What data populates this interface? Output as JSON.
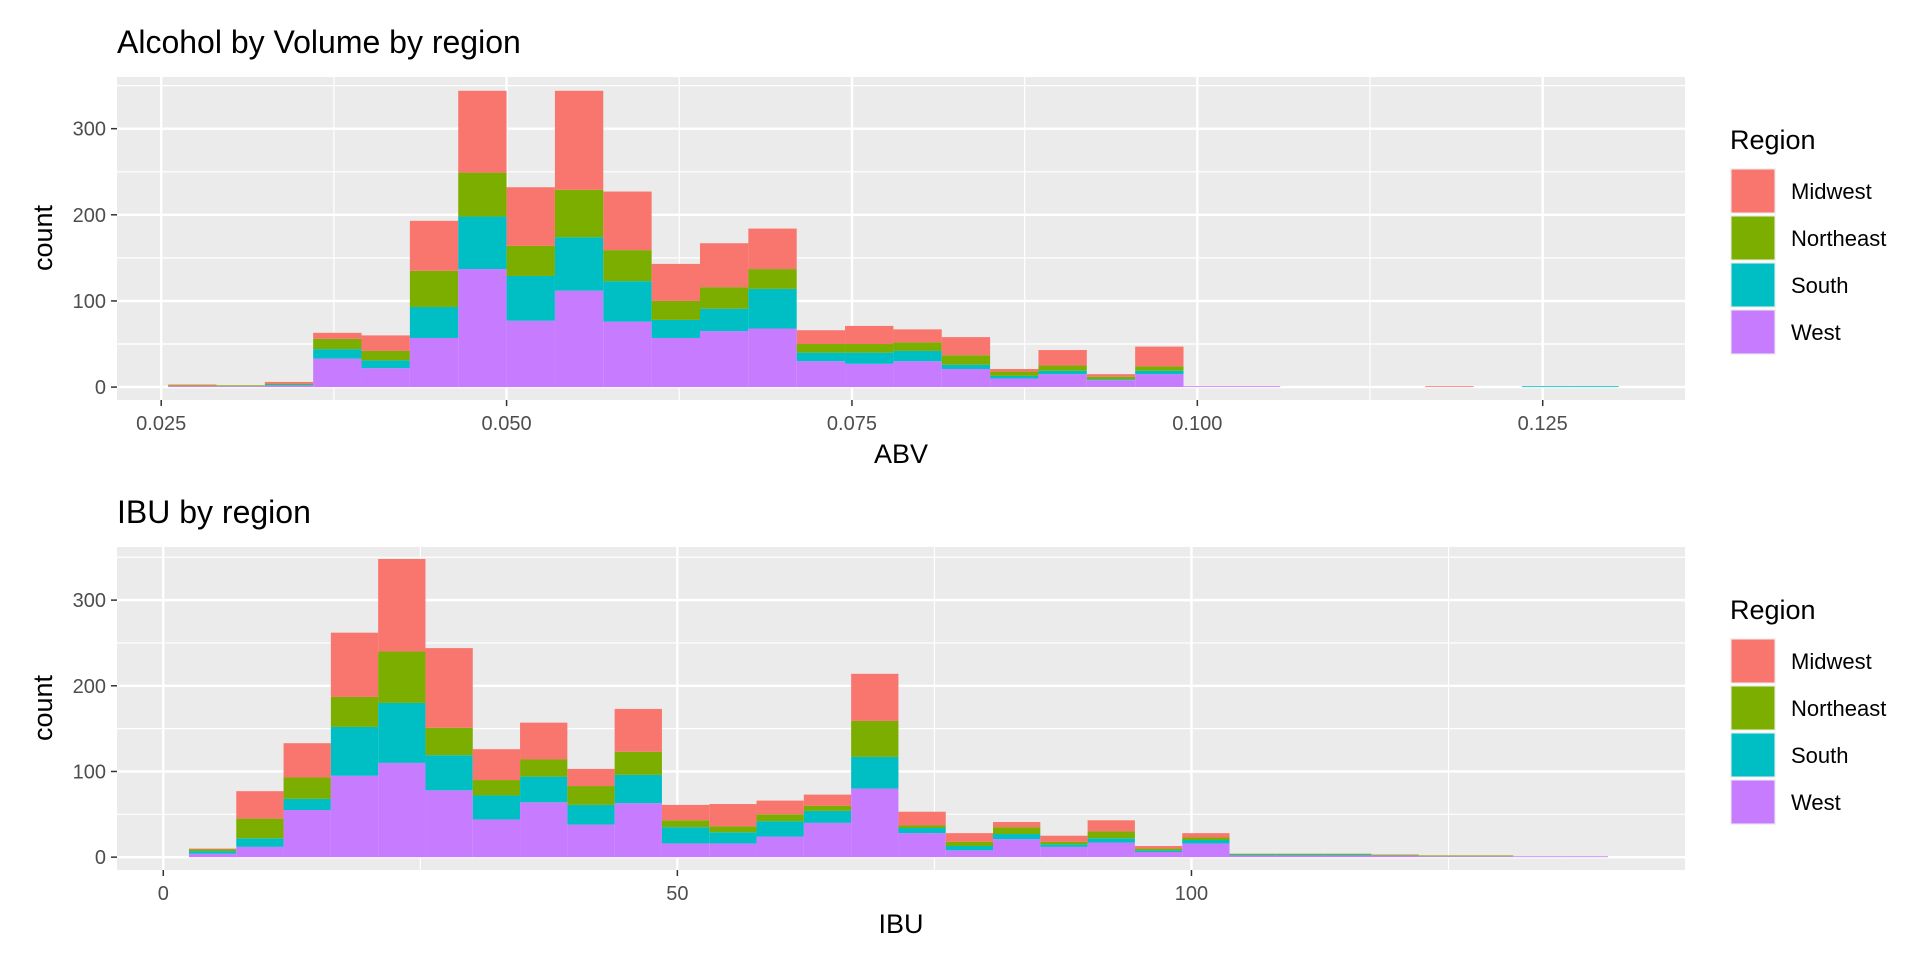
{
  "legend_title": "Region",
  "regions": [
    {
      "name": "Midwest",
      "color": "#F8766D"
    },
    {
      "name": "Northeast",
      "color": "#7CAE00"
    },
    {
      "name": "South",
      "color": "#00BFC4"
    },
    {
      "name": "West",
      "color": "#C77CFF"
    }
  ],
  "chart_data": [
    {
      "type": "bar",
      "stacked": true,
      "title": "Alcohol by Volume by region",
      "xlabel": "ABV",
      "ylabel": "count",
      "xlim": [
        0.0218,
        0.1353
      ],
      "ylim": [
        -15,
        360
      ],
      "x_ticks": [
        {
          "value": 0.025,
          "label": "0.025"
        },
        {
          "value": 0.05,
          "label": "0.050"
        },
        {
          "value": 0.075,
          "label": "0.075"
        },
        {
          "value": 0.1,
          "label": "0.100"
        },
        {
          "value": 0.125,
          "label": "0.125"
        }
      ],
      "y_ticks": [
        {
          "value": 0,
          "label": "0"
        },
        {
          "value": 100,
          "label": "100"
        },
        {
          "value": 200,
          "label": "200"
        },
        {
          "value": 300,
          "label": "300"
        }
      ],
      "grid": true,
      "legend": "right",
      "bin_edges": [
        0.0255,
        0.029,
        0.0325,
        0.036,
        0.0395,
        0.043,
        0.0465,
        0.05,
        0.0535,
        0.057,
        0.0605,
        0.064,
        0.0675,
        0.071,
        0.0745,
        0.078,
        0.0815,
        0.085,
        0.0885,
        0.092,
        0.0955,
        0.099,
        0.1025,
        0.106,
        0.1095,
        0.113,
        0.1165,
        0.12,
        0.1235,
        0.127,
        0.1305
      ],
      "series": [
        {
          "name": "West",
          "values": [
            1,
            1,
            2,
            33,
            22,
            57,
            137,
            77,
            112,
            76,
            57,
            65,
            68,
            30,
            27,
            30,
            21,
            10,
            15,
            8,
            15,
            1,
            1,
            0,
            0,
            0,
            0,
            0,
            0,
            0
          ]
        },
        {
          "name": "South",
          "values": [
            0,
            0,
            1,
            11,
            9,
            36,
            61,
            52,
            62,
            47,
            21,
            26,
            46,
            10,
            13,
            12,
            5,
            3,
            4,
            1,
            4,
            0,
            0,
            0,
            0,
            0,
            0,
            0,
            1,
            1
          ]
        },
        {
          "name": "Northeast",
          "values": [
            1,
            1,
            1,
            12,
            11,
            42,
            51,
            35,
            55,
            36,
            22,
            25,
            23,
            10,
            10,
            10,
            11,
            5,
            6,
            3,
            5,
            0,
            0,
            0,
            0,
            0,
            0,
            0,
            0,
            0
          ]
        },
        {
          "name": "Midwest",
          "values": [
            1,
            0,
            2,
            7,
            18,
            58,
            95,
            68,
            115,
            68,
            43,
            51,
            47,
            16,
            21,
            15,
            21,
            3,
            18,
            3,
            23,
            0,
            0,
            0,
            0,
            0,
            1,
            0,
            0,
            0
          ]
        }
      ]
    },
    {
      "type": "bar",
      "stacked": true,
      "title": "IBU by region",
      "xlabel": "IBU",
      "ylabel": "count",
      "xlim": [
        -4.5,
        148
      ],
      "ylim": [
        -15,
        362
      ],
      "x_ticks": [
        {
          "value": 0,
          "label": "0"
        },
        {
          "value": 50,
          "label": "50"
        },
        {
          "value": 100,
          "label": "100"
        }
      ],
      "y_ticks": [
        {
          "value": 0,
          "label": "0"
        },
        {
          "value": 100,
          "label": "100"
        },
        {
          "value": 200,
          "label": "200"
        },
        {
          "value": 300,
          "label": "300"
        }
      ],
      "grid": true,
      "legend": "right",
      "bin_edges": [
        2.5,
        7.1,
        11.7,
        16.3,
        20.9,
        25.5,
        30.1,
        34.7,
        39.3,
        43.9,
        48.5,
        53.1,
        57.7,
        62.3,
        66.9,
        71.5,
        76.1,
        80.7,
        85.3,
        89.9,
        94.5,
        99.1,
        103.7,
        108.3,
        112.9,
        117.5,
        122.1,
        126.7,
        131.3,
        135.9,
        140.5
      ],
      "series": [
        {
          "name": "West",
          "values": [
            4,
            12,
            55,
            95,
            110,
            78,
            44,
            64,
            38,
            63,
            16,
            16,
            24,
            40,
            80,
            28,
            8,
            21,
            12,
            17,
            6,
            16,
            2,
            2,
            2,
            2,
            1,
            1,
            1,
            1
          ]
        },
        {
          "name": "South",
          "values": [
            3,
            10,
            13,
            57,
            70,
            41,
            28,
            30,
            23,
            33,
            19,
            13,
            18,
            14,
            37,
            6,
            5,
            6,
            3,
            5,
            2,
            4,
            1,
            1,
            1,
            0,
            0,
            0,
            0,
            0
          ]
        },
        {
          "name": "Northeast",
          "values": [
            2,
            23,
            25,
            35,
            60,
            32,
            18,
            20,
            22,
            27,
            8,
            7,
            8,
            6,
            42,
            3,
            5,
            8,
            3,
            8,
            2,
            3,
            1,
            1,
            1,
            1,
            1,
            1,
            0,
            0
          ]
        },
        {
          "name": "Midwest",
          "values": [
            1,
            32,
            40,
            75,
            108,
            93,
            36,
            43,
            20,
            50,
            18,
            26,
            16,
            13,
            55,
            16,
            10,
            6,
            7,
            13,
            3,
            5,
            0,
            0,
            0,
            0,
            0,
            0,
            0,
            0
          ]
        }
      ]
    }
  ]
}
